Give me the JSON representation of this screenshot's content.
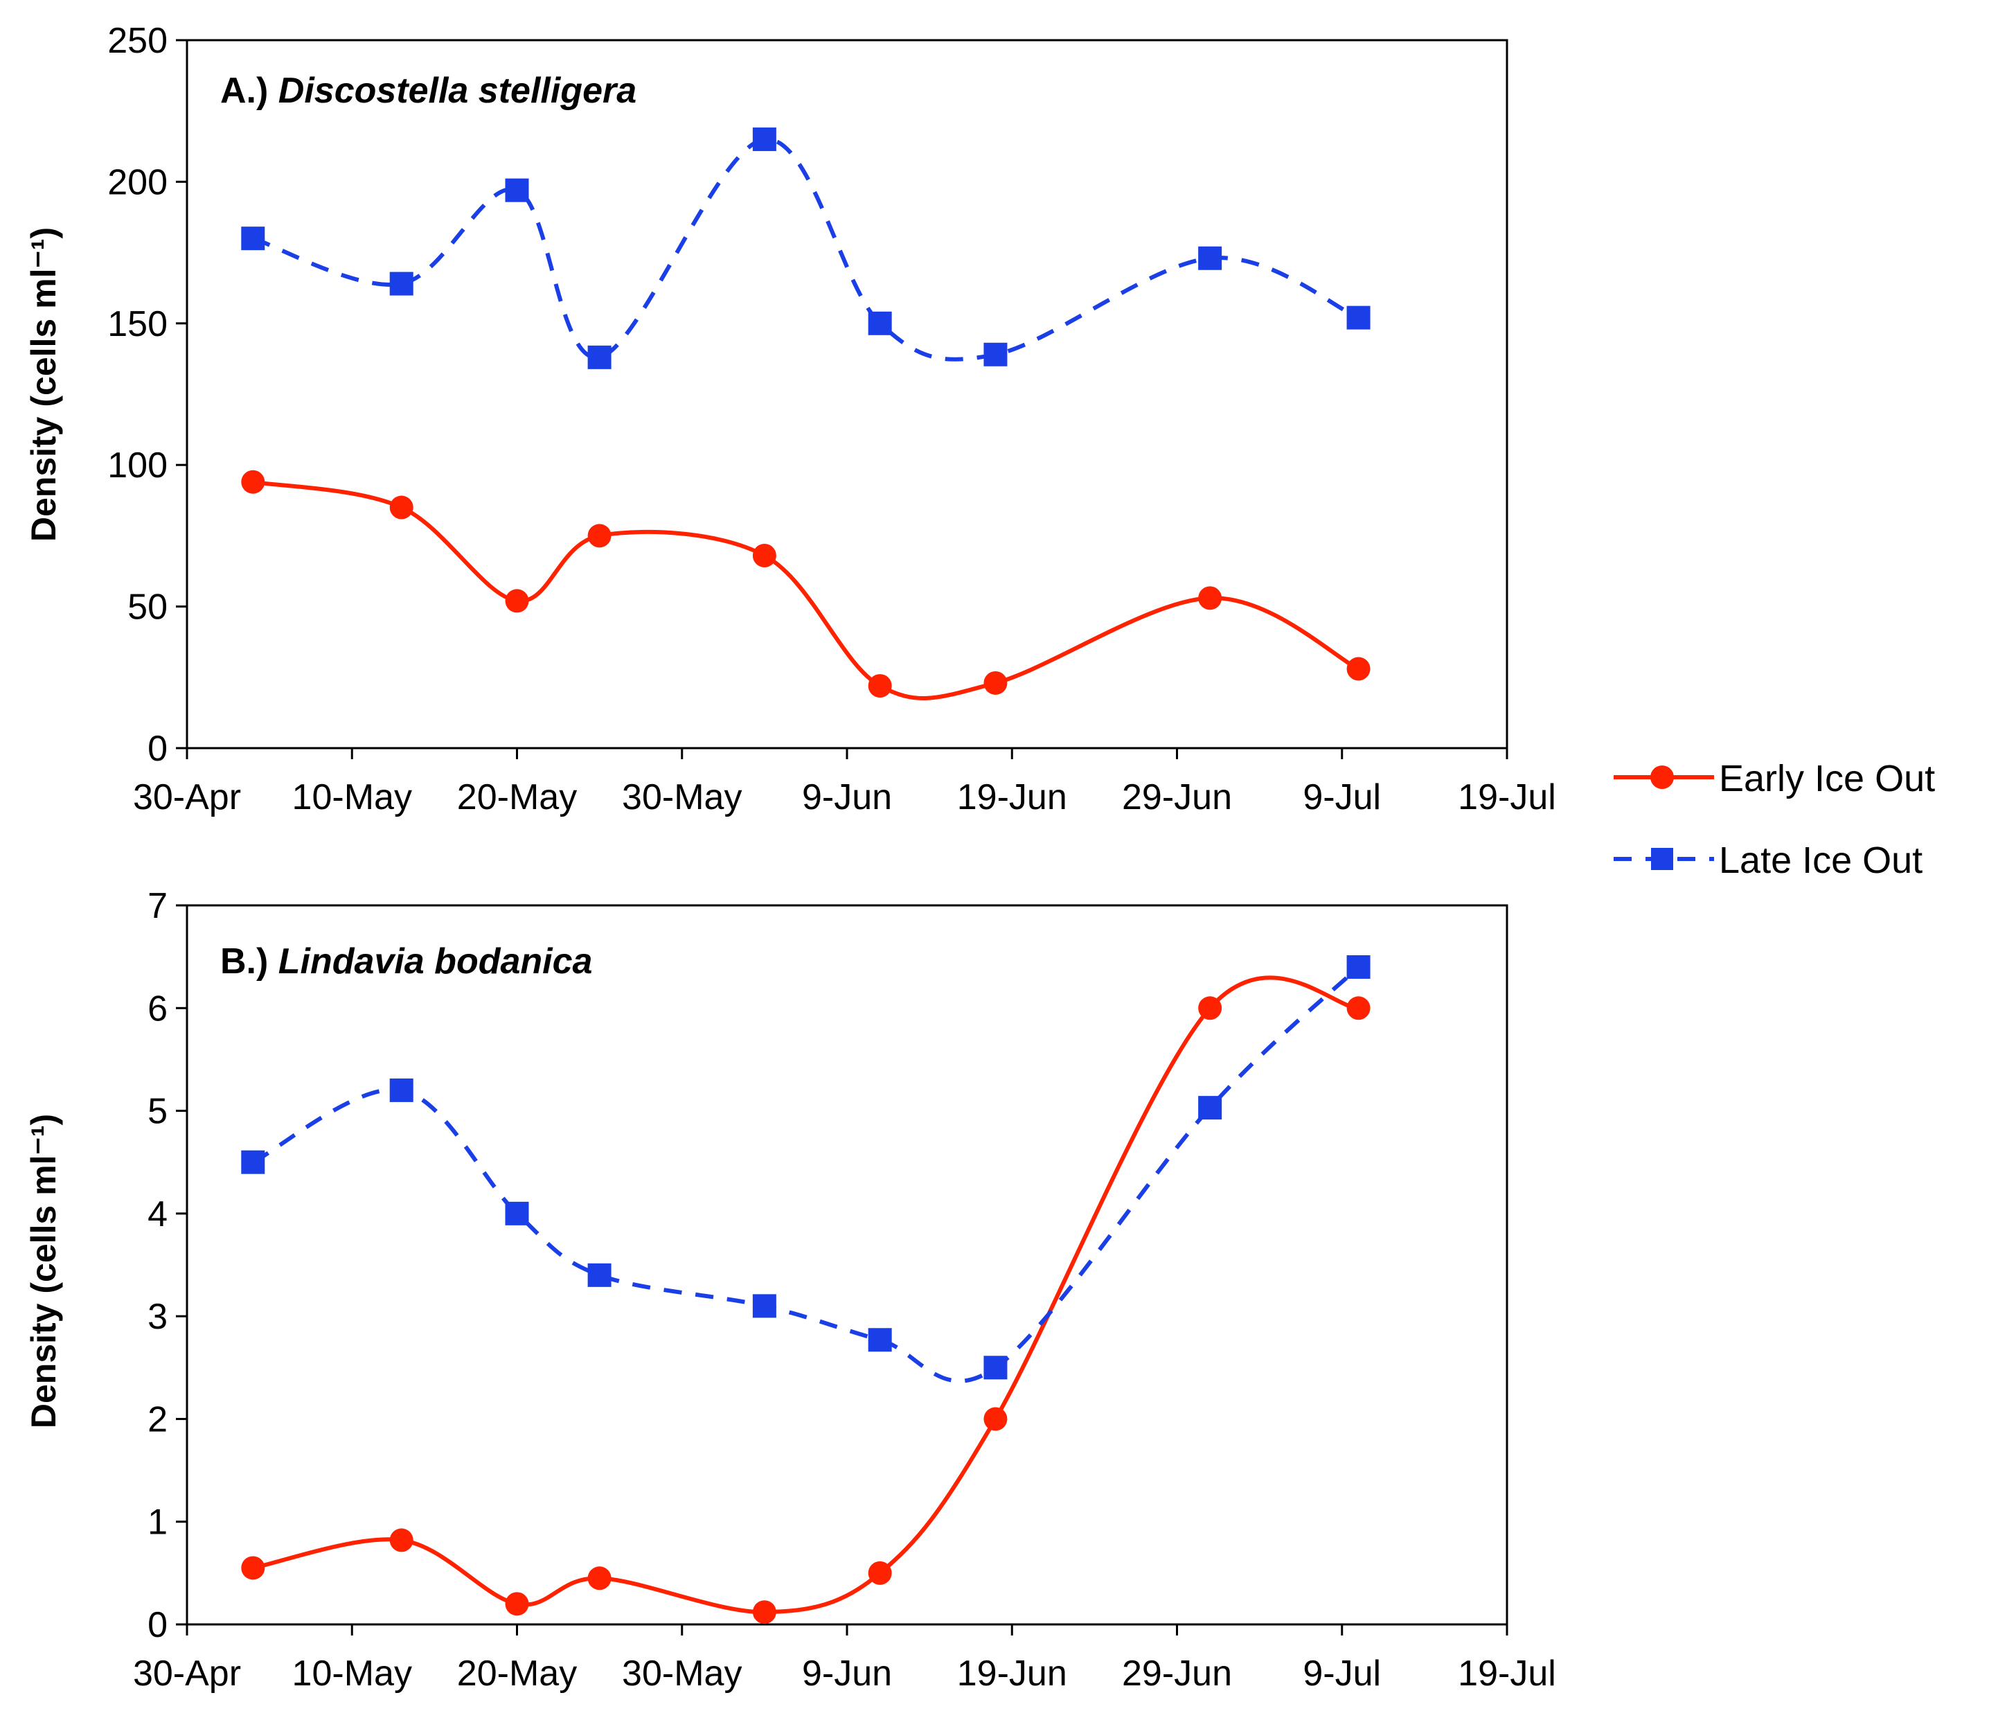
{
  "chart_data": [
    {
      "type": "line",
      "title_prefix": "A.)",
      "title_species": "Discostella stelligera",
      "xlabel": "",
      "ylabel": "Density (cells ml⁻¹)",
      "xlim": [
        0,
        80
      ],
      "ylim": [
        0,
        250
      ],
      "x_ticks": [
        0,
        10,
        20,
        30,
        40,
        50,
        60,
        70,
        80
      ],
      "x_tick_labels": [
        "30-Apr",
        "10-May",
        "20-May",
        "30-May",
        "9-Jun",
        "19-Jun",
        "29-Jun",
        "9-Jul",
        "19-Jul"
      ],
      "y_ticks": [
        0,
        50,
        100,
        150,
        200,
        250
      ],
      "y_tick_labels": [
        "0",
        "50",
        "100",
        "150",
        "200",
        "250"
      ],
      "series": [
        {
          "name": "Early Ice Out",
          "color": "#ff2200",
          "marker": "circle",
          "dash": false,
          "x": [
            4,
            13,
            20,
            25,
            35,
            42,
            49,
            62,
            71
          ],
          "values": [
            94,
            85,
            52,
            75,
            68,
            22,
            23,
            53,
            28
          ]
        },
        {
          "name": "Late Ice Out",
          "color": "#1a3fe6",
          "marker": "square",
          "dash": true,
          "x": [
            4,
            13,
            20,
            25,
            35,
            42,
            49,
            62,
            71
          ],
          "values": [
            180,
            164,
            197,
            138,
            215,
            150,
            139,
            173,
            152
          ]
        }
      ]
    },
    {
      "type": "line",
      "title_prefix": "B.)",
      "title_species": "Lindavia bodanica",
      "xlabel": "",
      "ylabel": "Density (cells ml⁻¹)",
      "xlim": [
        0,
        80
      ],
      "ylim": [
        0,
        7
      ],
      "x_ticks": [
        0,
        10,
        20,
        30,
        40,
        50,
        60,
        70,
        80
      ],
      "x_tick_labels": [
        "30-Apr",
        "10-May",
        "20-May",
        "30-May",
        "9-Jun",
        "19-Jun",
        "29-Jun",
        "9-Jul",
        "19-Jul"
      ],
      "y_ticks": [
        0,
        1,
        2,
        3,
        4,
        5,
        6,
        7
      ],
      "y_tick_labels": [
        "0",
        "1",
        "2",
        "3",
        "4",
        "5",
        "6",
        "7"
      ],
      "series": [
        {
          "name": "Early Ice Out",
          "color": "#ff2200",
          "marker": "circle",
          "dash": false,
          "x": [
            4,
            13,
            20,
            25,
            35,
            42,
            49,
            62,
            71
          ],
          "values": [
            0.55,
            0.82,
            0.2,
            0.45,
            0.12,
            0.5,
            2.0,
            6.0,
            6.0
          ]
        },
        {
          "name": "Late Ice Out",
          "color": "#1a3fe6",
          "marker": "square",
          "dash": true,
          "x": [
            4,
            13,
            20,
            25,
            35,
            42,
            49,
            62,
            71
          ],
          "values": [
            4.5,
            5.2,
            4.0,
            3.4,
            3.1,
            2.77,
            2.5,
            5.03,
            6.4
          ]
        }
      ]
    }
  ],
  "legend": {
    "items": [
      {
        "label": "Early Ice Out",
        "color": "#ff2200",
        "marker": "circle",
        "dash": false
      },
      {
        "label": "Late Ice Out",
        "color": "#1a3fe6",
        "marker": "square",
        "dash": true
      }
    ]
  }
}
